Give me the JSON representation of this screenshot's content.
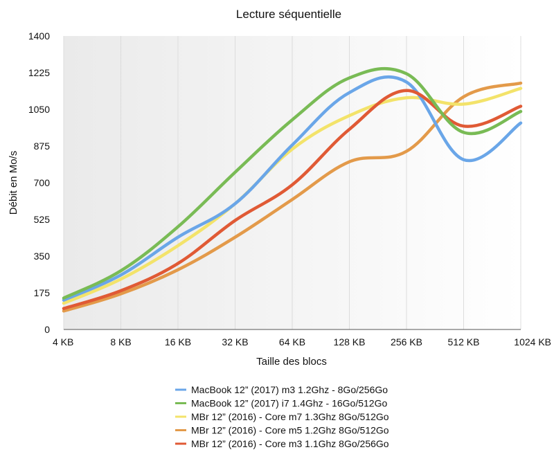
{
  "chart_data": {
    "type": "line",
    "title": "Lecture séquentielle",
    "xlabel": "Taille des blocs",
    "ylabel": "Débit en Mo/s",
    "categories": [
      "4 KB",
      "8 KB",
      "16 KB",
      "32 KB",
      "64 KB",
      "128 KB",
      "256 KB",
      "512 KB",
      "1024 KB"
    ],
    "ylim": [
      0,
      1400
    ],
    "yticks": [
      0,
      175,
      350,
      525,
      700,
      875,
      1050,
      1225,
      1400
    ],
    "grid": "vertical",
    "legend_position": "bottom",
    "background_gradient": [
      "#eaeaea",
      "#ffffff"
    ],
    "series": [
      {
        "name": "MacBook 12” (2017) m3 1.2Ghz - 8Go/256Go",
        "color": "#6aa6e8",
        "values": [
          140,
          260,
          440,
          600,
          880,
          1130,
          1180,
          810,
          985
        ]
      },
      {
        "name": "MacBook 12” (2017) i7 1.4Ghz - 16Go/512Go",
        "color": "#79bb55",
        "values": [
          150,
          280,
          490,
          750,
          1000,
          1200,
          1220,
          940,
          1040
        ]
      },
      {
        "name": "MBr 12” (2016) - Core m7 1.3Ghz  8Go/512Go",
        "color": "#f3e36a",
        "values": [
          125,
          240,
          400,
          600,
          860,
          1020,
          1105,
          1075,
          1150
        ]
      },
      {
        "name": "MBr 12” (2016) - Core m5 1.2Ghz  8Go/512Go",
        "color": "#e39a4a",
        "values": [
          88,
          170,
          285,
          440,
          620,
          800,
          850,
          1110,
          1175
        ]
      },
      {
        "name": "MBr 12” (2016) - Core m3 1.1Ghz  8Go/256Go",
        "color": "#e05a35",
        "values": [
          100,
          185,
          315,
          520,
          690,
          955,
          1140,
          970,
          1065
        ]
      }
    ]
  }
}
